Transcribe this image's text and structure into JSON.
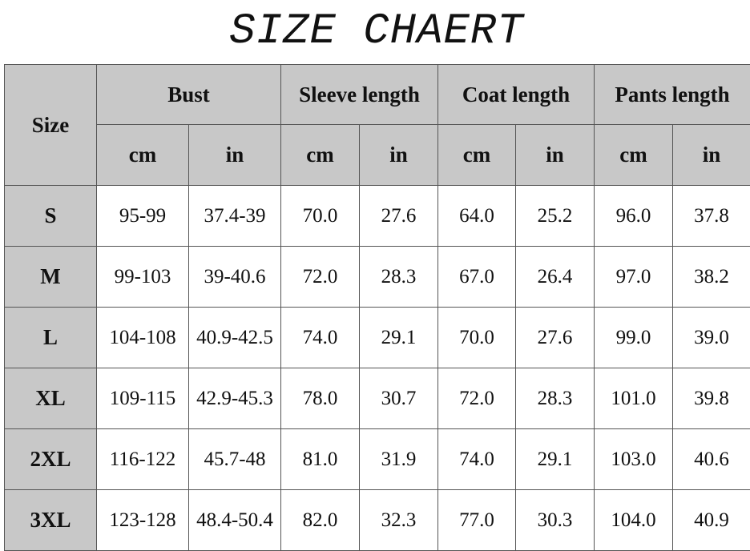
{
  "title": "SIZE CHAERT",
  "table": {
    "header": {
      "size": "Size",
      "groups": [
        "Bust",
        "Sleeve length",
        "Coat length",
        "Pants length"
      ],
      "units": [
        "cm",
        "in",
        "cm",
        "in",
        "cm",
        "in",
        "cm",
        "in"
      ]
    },
    "rows": [
      [
        "S",
        "95-99",
        "37.4-39",
        "70.0",
        "27.6",
        "64.0",
        "25.2",
        "96.0",
        "37.8"
      ],
      [
        "M",
        "99-103",
        "39-40.6",
        "72.0",
        "28.3",
        "67.0",
        "26.4",
        "97.0",
        "38.2"
      ],
      [
        "L",
        "104-108",
        "40.9-42.5",
        "74.0",
        "29.1",
        "70.0",
        "27.6",
        "99.0",
        "39.0"
      ],
      [
        "XL",
        "109-115",
        "42.9-45.3",
        "78.0",
        "30.7",
        "72.0",
        "28.3",
        "101.0",
        "39.8"
      ],
      [
        "2XL",
        "116-122",
        "45.7-48",
        "81.0",
        "31.9",
        "74.0",
        "29.1",
        "103.0",
        "40.6"
      ],
      [
        "3XL",
        "123-128",
        "48.4-50.4",
        "82.0",
        "32.3",
        "77.0",
        "30.3",
        "104.0",
        "40.9"
      ]
    ]
  }
}
